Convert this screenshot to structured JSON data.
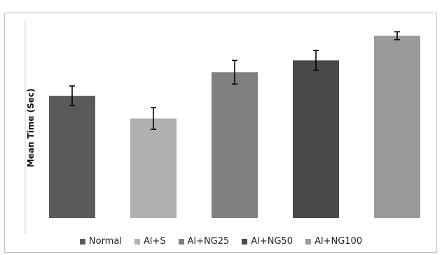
{
  "chart_data": {
    "type": "bar",
    "title": "",
    "xlabel": "",
    "ylabel": "Mean Time (Sec)",
    "ylim": [
      0,
      100
    ],
    "grid": false,
    "legend_position": "bottom",
    "categories": [
      "Normal",
      "Al+S",
      "Al+NG25",
      "Al+NG50",
      "Al+NG100"
    ],
    "values": [
      62,
      50.5,
      74,
      80,
      92.5
    ],
    "errors": [
      5,
      5.5,
      6,
      5,
      2
    ],
    "colors": [
      "#5a5a5a",
      "#b0b0b0",
      "#7f7f7f",
      "#4a4a4a",
      "#9a9a9a"
    ]
  }
}
